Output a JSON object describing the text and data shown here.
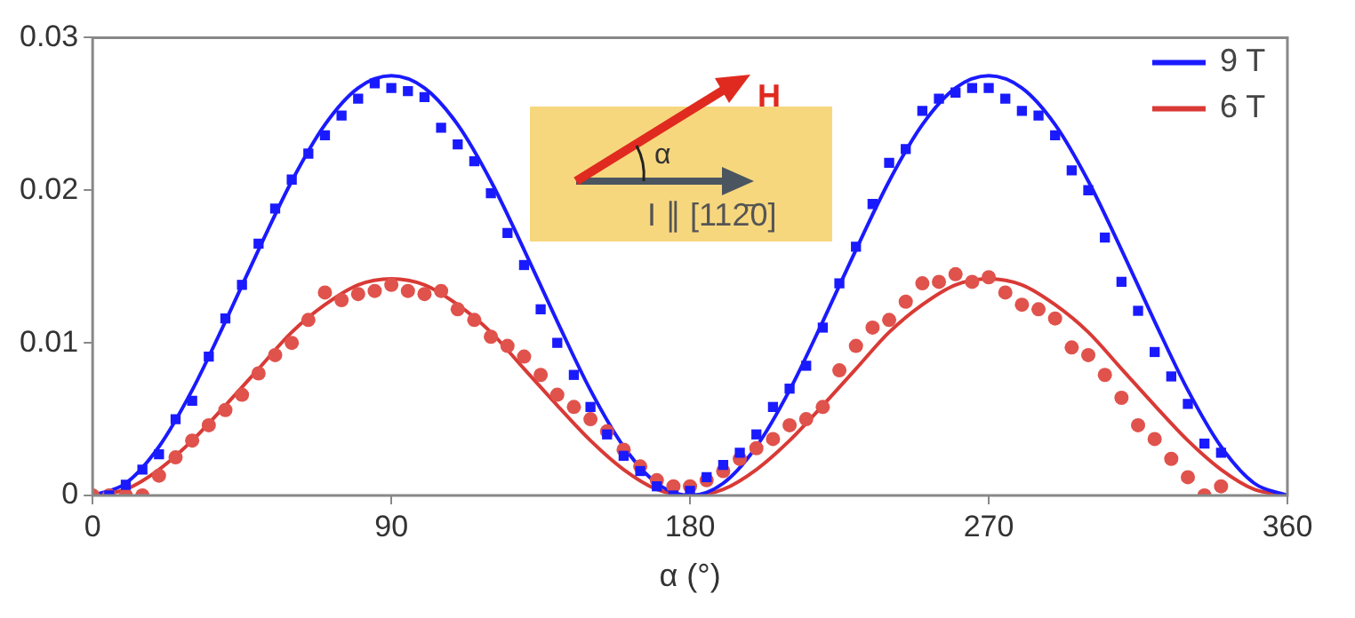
{
  "chart_data": {
    "type": "scatter",
    "xlabel": "α (°)",
    "xlim": [
      0,
      360
    ],
    "xticks": [
      0,
      90,
      180,
      270,
      360
    ],
    "ylim": [
      0,
      0.03
    ],
    "yticks": [
      0,
      0.01,
      0.02,
      0.03
    ],
    "grid": false,
    "legend": "top right",
    "annotations": [
      "H",
      "α",
      "I ∥ [112̄0]"
    ],
    "series": [
      {
        "type": "scatter",
        "color": "#1a1aff",
        "marker": "square",
        "x": [
          5,
          10,
          15,
          20,
          25,
          30,
          35,
          40,
          45,
          50,
          55,
          60,
          65,
          70,
          75,
          80,
          85,
          90,
          95,
          100,
          105,
          110,
          115,
          120,
          125,
          130,
          135,
          140,
          145,
          150,
          155,
          160,
          165,
          170,
          175,
          180,
          185,
          190,
          195,
          200,
          205,
          210,
          215,
          220,
          225,
          230,
          235,
          240,
          245,
          250,
          255,
          260,
          265,
          270,
          275,
          280,
          285,
          290,
          295,
          300,
          305,
          310,
          315,
          320,
          325,
          330,
          335,
          340
        ],
        "values": [
          0,
          0.0007,
          0.0017,
          0.0027,
          0.005,
          0.0062,
          0.0091,
          0.0116,
          0.0138,
          0.0165,
          0.0188,
          0.0207,
          0.0224,
          0.0236,
          0.0249,
          0.026,
          0.027,
          0.0267,
          0.0265,
          0.0261,
          0.0241,
          0.023,
          0.0219,
          0.0198,
          0.0172,
          0.0151,
          0.0122,
          0.01,
          0.0079,
          0.0058,
          0.004,
          0.0026,
          0.0016,
          0.0006,
          0,
          0.0003,
          0.0012,
          0.002,
          0.0028,
          0.004,
          0.0058,
          0.007,
          0.0085,
          0.011,
          0.0139,
          0.0163,
          0.0191,
          0.0218,
          0.0227,
          0.0252,
          0.026,
          0.0264,
          0.0267,
          0.0267,
          0.026,
          0.0252,
          0.0249,
          0.0236,
          0.0213,
          0.02,
          0.0169,
          0.014,
          0.0121,
          0.0094,
          0.0078,
          0.006,
          0.0034,
          0.0028
        ]
      },
      {
        "type": "scatter",
        "color": "#e0524c",
        "marker": "circle",
        "x": [
          0,
          5,
          10,
          15,
          20,
          25,
          30,
          35,
          40,
          45,
          50,
          55,
          60,
          65,
          70,
          75,
          80,
          85,
          90,
          95,
          100,
          105,
          110,
          115,
          120,
          125,
          130,
          135,
          140,
          145,
          150,
          155,
          160,
          165,
          170,
          175,
          180,
          185,
          190,
          195,
          200,
          205,
          210,
          215,
          220,
          225,
          230,
          235,
          240,
          245,
          250,
          255,
          260,
          265,
          270,
          275,
          280,
          285,
          290,
          295,
          300,
          305,
          310,
          315,
          320,
          325,
          330,
          335,
          340
        ],
        "values": [
          0,
          0,
          0,
          0,
          0.0013,
          0.0025,
          0.0036,
          0.0046,
          0.0056,
          0.0066,
          0.008,
          0.0092,
          0.01,
          0.0115,
          0.0133,
          0.0128,
          0.0132,
          0.0134,
          0.0138,
          0.0134,
          0.0132,
          0.0134,
          0.0122,
          0.0115,
          0.0104,
          0.0098,
          0.0091,
          0.0079,
          0.0066,
          0.0058,
          0.005,
          0.0042,
          0.003,
          0.0019,
          0.001,
          0.0006,
          0.0006,
          0.001,
          0.0016,
          0.0024,
          0.0031,
          0.0037,
          0.0046,
          0.005,
          0.0058,
          0.0082,
          0.0098,
          0.011,
          0.0115,
          0.0127,
          0.0139,
          0.014,
          0.0145,
          0.014,
          0.0143,
          0.0133,
          0.0125,
          0.0122,
          0.0116,
          0.0097,
          0.0092,
          0.0079,
          0.0064,
          0.0046,
          0.0037,
          0.0024,
          0.0012,
          0,
          0.0006
        ]
      },
      {
        "type": "line",
        "name": "9 T",
        "color": "#1a1aff",
        "marker": "none",
        "x": [
          0,
          10,
          20,
          30,
          40,
          50,
          60,
          70,
          80,
          90,
          100,
          110,
          120,
          130,
          140,
          150,
          160,
          170,
          180,
          190,
          200,
          210,
          220,
          230,
          240,
          250,
          260,
          270,
          280,
          290,
          300,
          310,
          320,
          330,
          340,
          350,
          360
        ],
        "values": [
          0,
          0.0008,
          0.0032,
          0.0069,
          0.0114,
          0.0161,
          0.0206,
          0.0243,
          0.0267,
          0.0275,
          0.0267,
          0.0243,
          0.0206,
          0.0161,
          0.0114,
          0.0069,
          0.0032,
          0.0008,
          0,
          0.0008,
          0.0032,
          0.0069,
          0.0114,
          0.0161,
          0.0206,
          0.0243,
          0.0267,
          0.0275,
          0.0267,
          0.0243,
          0.0206,
          0.0161,
          0.0114,
          0.0069,
          0.0032,
          0.0008,
          0
        ]
      },
      {
        "type": "line",
        "name": "6 T",
        "color": "#d93a36",
        "marker": "none",
        "x": [
          0,
          10,
          20,
          30,
          40,
          50,
          60,
          70,
          80,
          90,
          100,
          110,
          120,
          130,
          140,
          150,
          160,
          170,
          180,
          190,
          200,
          210,
          220,
          230,
          240,
          250,
          260,
          270,
          280,
          290,
          300,
          310,
          320,
          330,
          340,
          350,
          360
        ],
        "values": [
          0,
          0.0004,
          0.0017,
          0.0036,
          0.0059,
          0.0083,
          0.0107,
          0.0125,
          0.0138,
          0.0142,
          0.0138,
          0.0125,
          0.0107,
          0.0083,
          0.0059,
          0.0036,
          0.0017,
          0.0004,
          0,
          0.0004,
          0.0017,
          0.0036,
          0.0059,
          0.0083,
          0.0107,
          0.0125,
          0.0138,
          0.0142,
          0.0138,
          0.0125,
          0.0107,
          0.0083,
          0.0059,
          0.0036,
          0.0017,
          0.0004,
          0
        ]
      }
    ]
  }
}
